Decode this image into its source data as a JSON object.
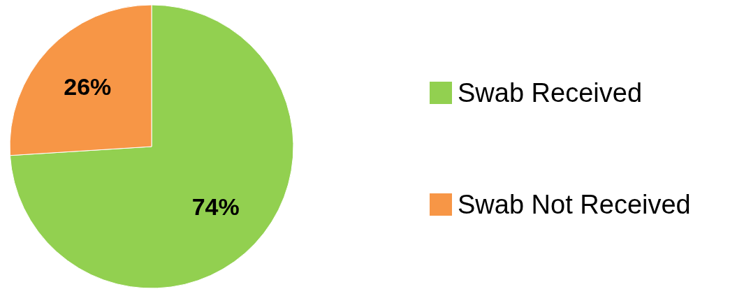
{
  "chart_data": {
    "type": "pie",
    "categories": [
      "Swab Received",
      "Swab Not Received"
    ],
    "values": [
      74,
      26
    ],
    "colors": [
      "#92d050",
      "#f79646"
    ],
    "value_labels": [
      "74%",
      "26%"
    ],
    "legend": "right"
  }
}
